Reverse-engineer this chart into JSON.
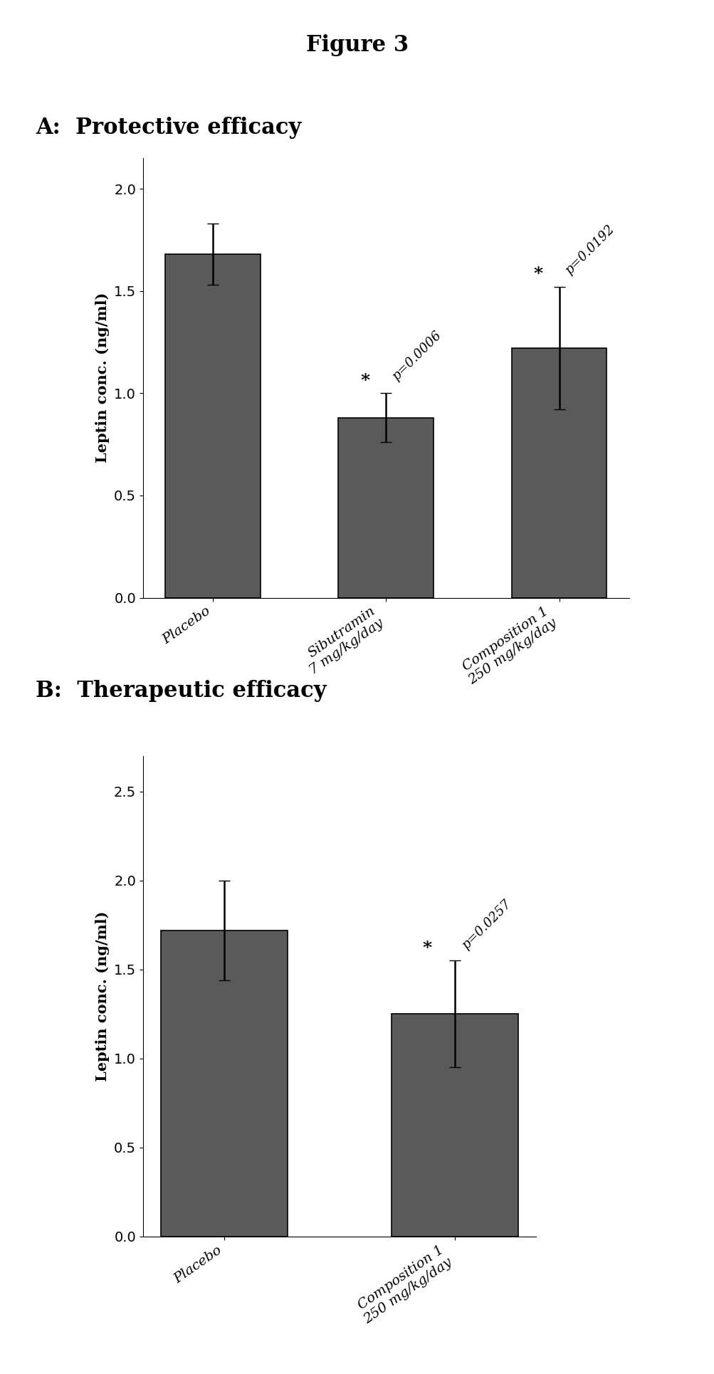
{
  "figure_title": "Figure 3",
  "panel_A_title": "A:  Protective efficacy",
  "panel_B_title": "B:  Therapeutic efficacy",
  "panel_A": {
    "categories": [
      "Placebo",
      "Sibutramin\n7 mg/kg/day",
      "Composition 1\n250 mg/kg/day"
    ],
    "values": [
      1.68,
      0.88,
      1.22
    ],
    "errors": [
      0.15,
      0.12,
      0.3
    ],
    "ylabel": "Leptin conc. (ng/ml)",
    "ylim": [
      0,
      2.15
    ],
    "yticks": [
      0,
      0.5,
      1.0,
      1.5,
      2.0
    ],
    "bar_color": "#5a5a5a",
    "annotations": [
      {
        "bar_idx": 1,
        "text": "p=0.0006",
        "rotation": 45
      },
      {
        "bar_idx": 2,
        "text": "p=0.0192",
        "rotation": 45
      }
    ]
  },
  "panel_B": {
    "categories": [
      "Placebo",
      "Composition 1\n250 mg/kg/day"
    ],
    "values": [
      1.72,
      1.25
    ],
    "errors": [
      0.28,
      0.3
    ],
    "ylabel": "Leptin conc. (ng/ml)",
    "ylim": [
      0,
      2.7
    ],
    "yticks": [
      0,
      0.5,
      1.0,
      1.5,
      2.0,
      2.5
    ],
    "bar_color": "#5a5a5a",
    "annotations": [
      {
        "bar_idx": 1,
        "text": "p=0.0257",
        "rotation": 45
      }
    ]
  },
  "bg_color": "#ffffff",
  "figure_title_fontsize": 22,
  "panel_title_fontsize": 22,
  "axis_label_fontsize": 15,
  "tick_fontsize": 14,
  "annotation_fontsize": 13
}
